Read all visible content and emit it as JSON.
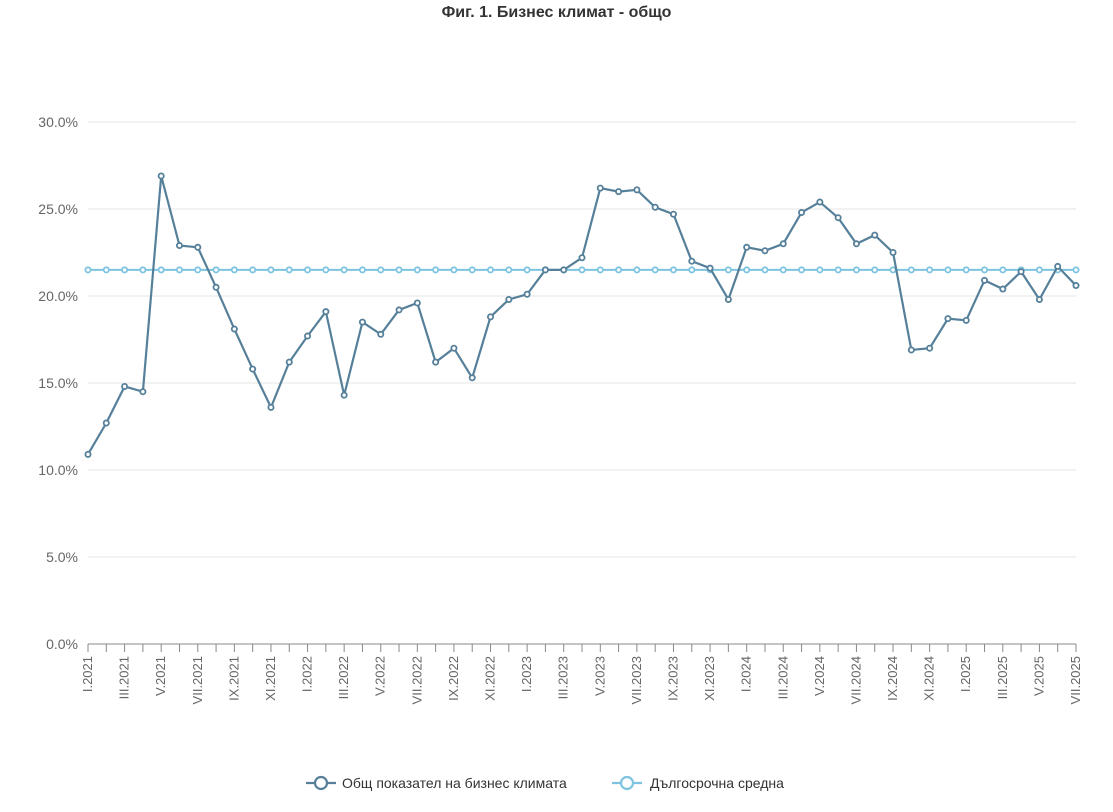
{
  "chart_data": {
    "type": "line",
    "title": "Фиг. 1. Бизнес климат - общо",
    "y_tick_labels": [
      "0.0%",
      "5.0%",
      "10.0%",
      "15.0%",
      "20.0%",
      "25.0%",
      "30.0%"
    ],
    "ylim": [
      0,
      30
    ],
    "grid": true,
    "legend_position": "bottom",
    "categories": [
      "I.2021",
      "II.2021",
      "III.2021",
      "IV.2021",
      "V.2021",
      "VI.2021",
      "VII.2021",
      "VIII.2021",
      "IX.2021",
      "X.2021",
      "XI.2021",
      "XII.2021",
      "I.2022",
      "II.2022",
      "III.2022",
      "IV.2022",
      "V.2022",
      "VI.2022",
      "VII.2022",
      "VIII.2022",
      "IX.2022",
      "X.2022",
      "XI.2022",
      "XII.2022",
      "I.2023",
      "II.2023",
      "III.2023",
      "IV.2023",
      "V.2023",
      "VI.2023",
      "VII.2023",
      "VIII.2023",
      "IX.2023",
      "X.2023",
      "XI.2023",
      "XII.2023",
      "I.2024",
      "II.2024",
      "III.2024",
      "IV.2024",
      "V.2024",
      "VI.2024",
      "VII.2024",
      "VIII.2024",
      "IX.2024",
      "X.2024",
      "XI.2024",
      "XII.2024",
      "I.2025",
      "II.2025",
      "III.2025",
      "IV.2025",
      "V.2025",
      "VI.2025",
      "VII.2025"
    ],
    "x_tick_labels": [
      "I.2021",
      "III.2021",
      "V.2021",
      "VII.2021",
      "IX.2021",
      "XI.2021",
      "I.2022",
      "III.2022",
      "V.2022",
      "VII.2022",
      "IX.2022",
      "XI.2022",
      "I.2023",
      "III.2023",
      "V.2023",
      "VII.2023",
      "IX.2023",
      "XI.2023",
      "I.2024",
      "III.2024",
      "V.2024",
      "VII.2024",
      "IX.2024",
      "XI.2024",
      "I.2025",
      "III.2025",
      "V.2025",
      "VII.2025"
    ],
    "series": [
      {
        "name": "Общ показател на бизнес климата",
        "color": "#56809a",
        "values": [
          10.9,
          12.7,
          14.8,
          14.5,
          26.9,
          22.9,
          22.8,
          20.5,
          18.1,
          15.8,
          13.6,
          16.2,
          17.7,
          19.1,
          14.3,
          18.5,
          17.8,
          19.2,
          19.6,
          16.2,
          17.0,
          15.3,
          18.8,
          19.8,
          20.1,
          21.5,
          21.5,
          22.2,
          26.2,
          26.0,
          26.1,
          25.1,
          24.7,
          22.0,
          21.6,
          19.8,
          22.8,
          22.6,
          23.0,
          24.8,
          25.4,
          24.5,
          23.0,
          23.5,
          22.5,
          16.9,
          17.0,
          18.7,
          18.6,
          20.9,
          20.4,
          21.4,
          19.8,
          21.7,
          20.6
        ]
      },
      {
        "name": "Дългосрочна средна",
        "color": "#7ec4e0",
        "values": [
          21.5,
          21.5,
          21.5,
          21.5,
          21.5,
          21.5,
          21.5,
          21.5,
          21.5,
          21.5,
          21.5,
          21.5,
          21.5,
          21.5,
          21.5,
          21.5,
          21.5,
          21.5,
          21.5,
          21.5,
          21.5,
          21.5,
          21.5,
          21.5,
          21.5,
          21.5,
          21.5,
          21.5,
          21.5,
          21.5,
          21.5,
          21.5,
          21.5,
          21.5,
          21.5,
          21.5,
          21.5,
          21.5,
          21.5,
          21.5,
          21.5,
          21.5,
          21.5,
          21.5,
          21.5,
          21.5,
          21.5,
          21.5,
          21.5,
          21.5,
          21.5,
          21.5,
          21.5,
          21.5,
          21.5
        ]
      }
    ]
  }
}
